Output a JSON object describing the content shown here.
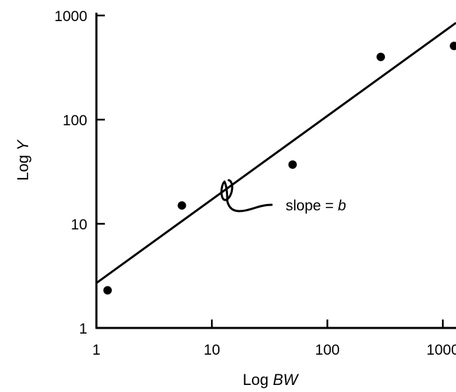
{
  "chart_data": {
    "type": "scatter",
    "x_scale": "log",
    "y_scale": "log",
    "xlim": [
      1,
      1300
    ],
    "ylim": [
      1,
      1000
    ],
    "xticks": [
      1,
      10,
      100,
      1000
    ],
    "xtick_labels": [
      "1",
      "10",
      "100",
      "1000"
    ],
    "yticks": [
      1,
      10,
      100,
      1000
    ],
    "ytick_labels": [
      "1",
      "10",
      "100",
      "1000"
    ],
    "xlabel": {
      "prefix": "Log ",
      "var": "BW"
    },
    "ylabel": {
      "prefix": "Log ",
      "var": "Y"
    },
    "grid": false,
    "legend": "none",
    "points": [
      {
        "x": 1.25,
        "y": 2.3
      },
      {
        "x": 5.5,
        "y": 15
      },
      {
        "x": 50,
        "y": 37
      },
      {
        "x": 290,
        "y": 400
      },
      {
        "x": 1250,
        "y": 510
      }
    ],
    "fit_line": {
      "from": {
        "x": 1,
        "y": 2.7
      },
      "to": {
        "x": 1300,
        "y": 850
      }
    },
    "annotation": {
      "prefix": "slope = ",
      "var": "b"
    }
  }
}
